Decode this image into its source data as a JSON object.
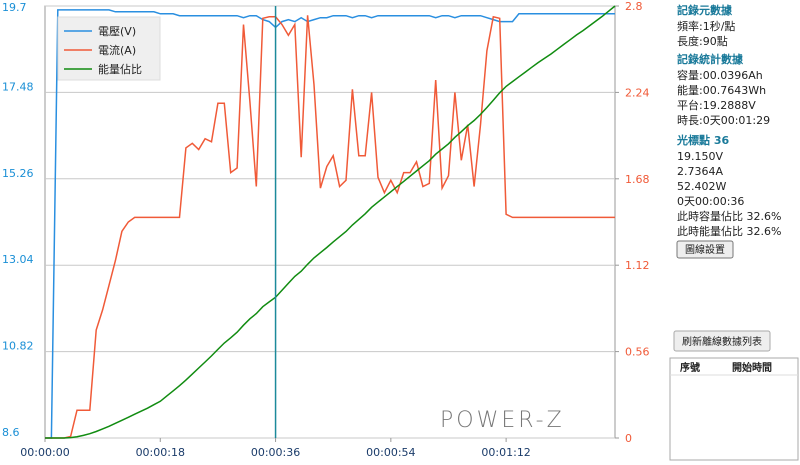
{
  "chart_data": {
    "type": "line",
    "x": [
      0,
      1,
      2,
      3,
      4,
      5,
      6,
      7,
      8,
      9,
      10,
      11,
      12,
      13,
      14,
      15,
      16,
      17,
      18,
      19,
      20,
      21,
      22,
      23,
      24,
      25,
      26,
      27,
      28,
      29,
      30,
      31,
      32,
      33,
      34,
      35,
      36,
      37,
      38,
      39,
      40,
      41,
      42,
      43,
      44,
      45,
      46,
      47,
      48,
      49,
      50,
      51,
      52,
      53,
      54,
      55,
      56,
      57,
      58,
      59,
      60,
      61,
      62,
      63,
      64,
      65,
      66,
      67,
      68,
      69,
      70,
      71,
      72,
      73,
      74,
      75,
      76,
      77,
      78,
      79,
      80,
      81,
      82,
      83,
      84,
      85,
      86,
      87,
      88,
      89
    ],
    "xlim": [
      0,
      89
    ],
    "xticks": [
      {
        "value": 0,
        "label": "00:00:00"
      },
      {
        "value": 18,
        "label": "00:00:18"
      },
      {
        "value": 36,
        "label": "00:00:36"
      },
      {
        "value": 54,
        "label": "00:00:54"
      },
      {
        "value": 72,
        "label": "00:01:12"
      }
    ],
    "ylim": [
      8.6,
      19.7
    ],
    "yticks": [
      8.6,
      10.82,
      13.04,
      15.26,
      17.48,
      19.7
    ],
    "y2lim": [
      0,
      2.8
    ],
    "y2ticks": [
      0,
      0.56,
      1.12,
      1.68,
      2.24,
      2.8
    ],
    "y3lim": [
      0,
      100
    ],
    "grid": true,
    "legend": "upper left",
    "cursor": 36,
    "watermark": "POWER-Z",
    "series": [
      {
        "name": "電壓(V)",
        "color": "#2a8fe0",
        "axis": "y",
        "values": [
          8.6,
          8.6,
          19.6,
          19.6,
          19.6,
          19.6,
          19.6,
          19.6,
          19.6,
          19.6,
          19.6,
          19.55,
          19.55,
          19.55,
          19.55,
          19.55,
          19.55,
          19.55,
          19.5,
          19.5,
          19.5,
          19.45,
          19.45,
          19.45,
          19.45,
          19.45,
          19.45,
          19.45,
          19.45,
          19.45,
          19.45,
          19.4,
          19.45,
          19.45,
          19.35,
          19.3,
          19.15,
          19.3,
          19.35,
          19.3,
          19.4,
          19.3,
          19.35,
          19.4,
          19.4,
          19.45,
          19.45,
          19.45,
          19.4,
          19.45,
          19.45,
          19.4,
          19.45,
          19.45,
          19.45,
          19.45,
          19.45,
          19.45,
          19.45,
          19.45,
          19.45,
          19.4,
          19.45,
          19.45,
          19.4,
          19.45,
          19.45,
          19.45,
          19.45,
          19.4,
          19.35,
          19.3,
          19.3,
          19.3,
          19.5,
          19.5,
          19.5,
          19.5,
          19.5,
          19.5,
          19.5,
          19.5,
          19.5,
          19.5,
          19.5,
          19.5,
          19.5,
          19.5,
          19.5,
          19.5
        ]
      },
      {
        "name": "電流(A)",
        "color": "#f05a38",
        "axis": "y2",
        "values": [
          0,
          0,
          0,
          0,
          0.01,
          0.18,
          0.18,
          0.18,
          0.7,
          0.83,
          0.99,
          1.15,
          1.34,
          1.4,
          1.43,
          1.43,
          1.43,
          1.43,
          1.43,
          1.43,
          1.43,
          1.43,
          1.88,
          1.91,
          1.87,
          1.94,
          1.92,
          2.17,
          2.17,
          1.72,
          1.75,
          2.68,
          2.18,
          1.63,
          2.72,
          2.73,
          2.73,
          2.68,
          2.61,
          2.68,
          1.82,
          2.74,
          2.29,
          1.62,
          1.76,
          1.83,
          1.63,
          1.67,
          2.26,
          1.83,
          1.83,
          2.24,
          1.69,
          1.59,
          1.67,
          1.59,
          1.72,
          1.72,
          1.79,
          1.63,
          1.65,
          2.32,
          1.62,
          1.7,
          2.24,
          1.8,
          2.03,
          1.63,
          2.03,
          2.51,
          2.73,
          2.72,
          1.45,
          1.43,
          1.43,
          1.43,
          1.43,
          1.43,
          1.43,
          1.43,
          1.43,
          1.43,
          1.43,
          1.43,
          1.43,
          1.43,
          1.43,
          1.43,
          1.43,
          1.43
        ]
      },
      {
        "name": "能量佔比",
        "color": "#118c11",
        "axis": "y3",
        "values": [
          0,
          0,
          0,
          0,
          0.1,
          0.3,
          0.6,
          1.0,
          1.5,
          2.1,
          2.7,
          3.4,
          4.1,
          4.8,
          5.5,
          6.2,
          6.9,
          7.7,
          8.5,
          9.7,
          10.9,
          12.1,
          13.4,
          14.8,
          16.2,
          17.6,
          19.0,
          20.5,
          22.0,
          23.2,
          24.5,
          26.1,
          27.6,
          28.8,
          30.4,
          31.5,
          32.6,
          34.2,
          35.8,
          37.4,
          38.6,
          40.2,
          41.7,
          42.9,
          44.1,
          45.4,
          46.6,
          47.8,
          49.3,
          50.6,
          51.9,
          53.4,
          54.6,
          55.8,
          57.0,
          58.2,
          59.4,
          60.6,
          61.8,
          63.0,
          64.2,
          65.7,
          66.9,
          68.1,
          69.6,
          70.9,
          72.3,
          73.5,
          74.9,
          76.5,
          78.2,
          79.9,
          81.4,
          82.5,
          83.6,
          84.7,
          85.8,
          86.9,
          87.9,
          88.9,
          90.0,
          91.1,
          92.2,
          93.3,
          94.3,
          95.4,
          96.5,
          97.6,
          98.8,
          100
        ]
      }
    ]
  },
  "panel": {
    "meta_title": "記錄元數據",
    "rate": "頻率:1秒/點",
    "length": "長度:90點",
    "stats_title": "記錄統計數據",
    "capacity": "容量:00.0396Ah",
    "energy": "能量:00.7643Wh",
    "plateau": "平台:19.2888V",
    "duration": "時長:0天00:01:29",
    "cursor_title": "光標點 36",
    "voltage": "19.150V",
    "current": "2.7364A",
    "power": "52.402W",
    "time": "0天00:00:36",
    "cap_ratio": "此時容量佔比 32.6%",
    "energy_ratio": "此時能量佔比 32.6%",
    "settings_button": "圖線設置",
    "refresh_button": "刷新離線數據列表",
    "table_headers": [
      "序號",
      "開始時間"
    ]
  }
}
